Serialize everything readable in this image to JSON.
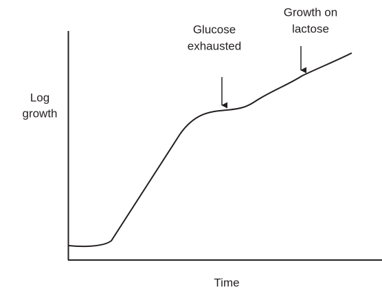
{
  "y_axis_label": [
    "Log",
    "growth"
  ],
  "x_axis_label": "Time",
  "annotations": [
    {
      "lines": [
        "Glucose",
        "exhausted"
      ]
    },
    {
      "lines": [
        "Growth on",
        "lactose"
      ]
    }
  ]
}
